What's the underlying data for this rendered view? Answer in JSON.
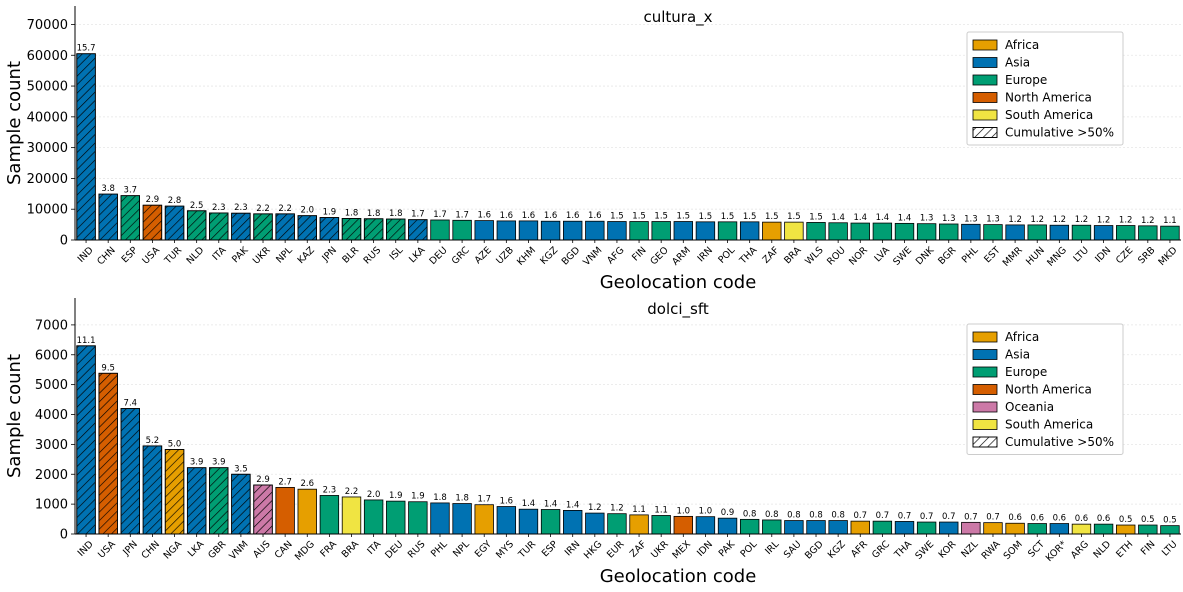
{
  "colors": {
    "Africa": "#E69F00",
    "Asia": "#0072B2",
    "Europe": "#009E73",
    "North America": "#D55E00",
    "Oceania": "#CC79A7",
    "South America": "#F0E442"
  },
  "chart_data": [
    {
      "type": "bar",
      "title": "cultura_x",
      "xlabel": "Geolocation code",
      "ylabel": "Sample count",
      "ylim": [
        0,
        76000
      ],
      "yticks": [
        0,
        10000,
        20000,
        30000,
        40000,
        50000,
        60000,
        70000
      ],
      "grid": true,
      "legend_position": "top-right",
      "legend": [
        "Africa",
        "Asia",
        "Europe",
        "North America",
        "South America",
        "Cumulative >50%"
      ],
      "categories": [
        "IND",
        "CHN",
        "ESP",
        "USA",
        "TUR",
        "NLD",
        "ITA",
        "PAK",
        "UKR",
        "NPL",
        "KAZ",
        "JPN",
        "BLR",
        "RUS",
        "ISL",
        "LKA",
        "DEU",
        "GRC",
        "AZE",
        "UZB",
        "KHM",
        "KGZ",
        "BGD",
        "VNM",
        "AFG",
        "FIN",
        "GEO",
        "ARM",
        "IRN",
        "POL",
        "THA",
        "ZAF",
        "BRA",
        "WLS",
        "ROU",
        "NOR",
        "LVA",
        "SWE",
        "DNK",
        "BGR",
        "PHL",
        "EST",
        "MMR",
        "HUN",
        "MNG",
        "LTU",
        "IDN",
        "CZE",
        "SRB",
        "MKD"
      ],
      "values": [
        60500,
        14900,
        14400,
        11300,
        11000,
        9500,
        8800,
        8700,
        8500,
        8500,
        7900,
        7300,
        7000,
        6900,
        6800,
        6600,
        6500,
        6400,
        6300,
        6200,
        6200,
        6100,
        6100,
        6100,
        6000,
        6000,
        6000,
        6000,
        5900,
        5900,
        5900,
        5800,
        5800,
        5700,
        5600,
        5500,
        5500,
        5400,
        5300,
        5200,
        5100,
        5000,
        4900,
        4900,
        4800,
        4800,
        4700,
        4700,
        4600,
        4500
      ],
      "regions": [
        "Asia",
        "Asia",
        "Europe",
        "North America",
        "Asia",
        "Europe",
        "Europe",
        "Asia",
        "Europe",
        "Asia",
        "Asia",
        "Asia",
        "Europe",
        "Europe",
        "Europe",
        "Asia",
        "Europe",
        "Europe",
        "Asia",
        "Asia",
        "Asia",
        "Asia",
        "Asia",
        "Asia",
        "Asia",
        "Europe",
        "Europe",
        "Asia",
        "Asia",
        "Europe",
        "Asia",
        "Africa",
        "South America",
        "Europe",
        "Europe",
        "Europe",
        "Europe",
        "Europe",
        "Europe",
        "Europe",
        "Asia",
        "Europe",
        "Asia",
        "Europe",
        "Asia",
        "Europe",
        "Asia",
        "Europe",
        "Europe",
        "Europe"
      ],
      "percent_labels": [
        "15.7",
        "3.8",
        "3.7",
        "2.9",
        "2.8",
        "2.5",
        "2.3",
        "2.3",
        "2.2",
        "2.2",
        "2.0",
        "1.9",
        "1.8",
        "1.8",
        "1.8",
        "1.7",
        "1.7",
        "1.7",
        "1.6",
        "1.6",
        "1.6",
        "1.6",
        "1.6",
        "1.6",
        "1.5",
        "1.5",
        "1.5",
        "1.5",
        "1.5",
        "1.5",
        "1.5",
        "1.5",
        "1.5",
        "1.5",
        "1.4",
        "1.4",
        "1.4",
        "1.4",
        "1.3",
        "1.3",
        "1.3",
        "1.3",
        "1.2",
        "1.2",
        "1.2",
        "1.2",
        "1.2",
        "1.2",
        "1.2",
        "1.1"
      ],
      "cumulative_count": 16
    },
    {
      "type": "bar",
      "title": "dolci_sft",
      "xlabel": "Geolocation code",
      "ylabel": "Sample count",
      "ylim": [
        0,
        7900
      ],
      "yticks": [
        0,
        1000,
        2000,
        3000,
        4000,
        5000,
        6000,
        7000
      ],
      "grid": true,
      "legend_position": "top-right",
      "legend": [
        "Africa",
        "Asia",
        "Europe",
        "North America",
        "Oceania",
        "South America",
        "Cumulative >50%"
      ],
      "categories": [
        "IND",
        "USA",
        "JPN",
        "CHN",
        "NGA",
        "LKA",
        "GBR",
        "VNM",
        "AUS",
        "CAN",
        "MDG",
        "FRA",
        "BRA",
        "ITA",
        "DEU",
        "RUS",
        "PHL",
        "NPL",
        "EGY",
        "MYS",
        "TUR",
        "ESP",
        "IRN",
        "HKG",
        "EUR",
        "ZAF",
        "UKR",
        "MEX",
        "IDN",
        "PAK",
        "POL",
        "IRL",
        "SAU",
        "BGD",
        "KGZ",
        "AFR",
        "GRC",
        "THA",
        "SWE",
        "KOR",
        "NZL",
        "RWA",
        "SOM",
        "SCT",
        "KOR*",
        "ARG",
        "NLD",
        "ETH",
        "FIN",
        "LTU"
      ],
      "values": [
        6300,
        5380,
        4200,
        2950,
        2830,
        2220,
        2220,
        2000,
        1640,
        1560,
        1500,
        1290,
        1240,
        1140,
        1100,
        1080,
        1040,
        1020,
        980,
        920,
        830,
        820,
        790,
        700,
        680,
        640,
        620,
        590,
        580,
        530,
        490,
        470,
        450,
        450,
        450,
        430,
        430,
        420,
        400,
        400,
        390,
        380,
        360,
        350,
        350,
        330,
        330,
        300,
        300,
        280
      ],
      "regions": [
        "Asia",
        "North America",
        "Asia",
        "Asia",
        "Africa",
        "Asia",
        "Europe",
        "Asia",
        "Oceania",
        "North America",
        "Africa",
        "Europe",
        "South America",
        "Europe",
        "Europe",
        "Europe",
        "Asia",
        "Asia",
        "Africa",
        "Asia",
        "Asia",
        "Europe",
        "Asia",
        "Asia",
        "Europe",
        "Africa",
        "Europe",
        "North America",
        "Asia",
        "Asia",
        "Europe",
        "Europe",
        "Asia",
        "Asia",
        "Asia",
        "Africa",
        "Europe",
        "Asia",
        "Europe",
        "Asia",
        "Oceania",
        "Africa",
        "Africa",
        "Europe",
        "Asia",
        "South America",
        "Europe",
        "Africa",
        "Europe",
        "Europe"
      ],
      "percent_labels": [
        "11.1",
        "9.5",
        "7.4",
        "5.2",
        "5.0",
        "3.9",
        "3.9",
        "3.5",
        "2.9",
        "2.7",
        "2.6",
        "2.3",
        "2.2",
        "2.0",
        "1.9",
        "1.9",
        "1.8",
        "1.8",
        "1.7",
        "1.6",
        "1.4",
        "1.4",
        "1.4",
        "1.2",
        "1.2",
        "1.1",
        "1.1",
        "1.0",
        "1.0",
        "0.9",
        "0.8",
        "0.8",
        "0.8",
        "0.8",
        "0.8",
        "0.7",
        "0.7",
        "0.7",
        "0.7",
        "0.7",
        "0.7",
        "0.7",
        "0.6",
        "0.6",
        "0.6",
        "0.6",
        "0.6",
        "0.5",
        "0.5",
        "0.5"
      ],
      "cumulative_count": 9
    }
  ]
}
